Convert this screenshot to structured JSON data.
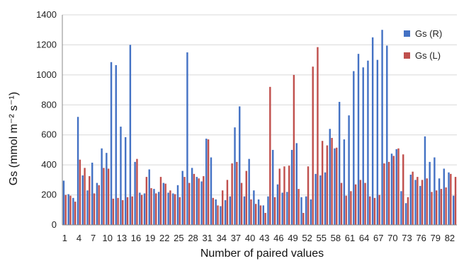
{
  "chart_data": {
    "type": "bar",
    "xlabel": "Number of paired values",
    "ylabel": "Gs (mmol m⁻² s⁻¹)",
    "ylim": [
      0,
      1400
    ],
    "yticks": [
      0,
      200,
      400,
      600,
      800,
      1000,
      1200,
      1400
    ],
    "xtick_labels": [
      "1",
      "4",
      "7",
      "10",
      "13",
      "16",
      "19",
      "22",
      "25",
      "28",
      "31",
      "34",
      "37",
      "40",
      "43",
      "46",
      "49",
      "52",
      "55",
      "58",
      "61",
      "64",
      "67",
      "70",
      "73",
      "76",
      "79",
      "82"
    ],
    "grid": true,
    "legend_position": "top-right",
    "x": [
      1,
      2,
      3,
      4,
      5,
      6,
      7,
      8,
      9,
      10,
      11,
      12,
      13,
      14,
      15,
      16,
      17,
      18,
      19,
      20,
      21,
      22,
      23,
      24,
      25,
      26,
      27,
      28,
      29,
      30,
      31,
      32,
      33,
      34,
      35,
      36,
      37,
      38,
      39,
      40,
      41,
      42,
      43,
      44,
      45,
      46,
      47,
      48,
      49,
      50,
      51,
      52,
      53,
      54,
      55,
      56,
      57,
      58,
      59,
      60,
      61,
      62,
      63,
      64,
      65,
      66,
      67,
      68,
      69,
      70,
      71,
      72,
      73,
      74,
      75,
      76,
      77,
      78,
      79,
      80,
      81,
      82,
      83
    ],
    "series": [
      {
        "name": "Gs (R)",
        "color": "#4472c4",
        "values": [
          295,
          205,
          180,
          720,
          330,
          230,
          415,
          280,
          510,
          480,
          1085,
          1065,
          655,
          585,
          1200,
          420,
          215,
          210,
          370,
          240,
          220,
          280,
          215,
          210,
          265,
          360,
          1150,
          380,
          320,
          290,
          575,
          450,
          170,
          125,
          165,
          190,
          650,
          790,
          190,
          440,
          230,
          170,
          130,
          190,
          500,
          270,
          215,
          220,
          500,
          545,
          185,
          190,
          170,
          340,
          330,
          350,
          640,
          510,
          820,
          570,
          730,
          1025,
          1140,
          1050,
          1095,
          1250,
          1100,
          1300,
          1195,
          475,
          505,
          225,
          145,
          335,
          300,
          260,
          590,
          420,
          450,
          310,
          375,
          350,
          195
        ]
      },
      {
        "name": "Gs (L)",
        "color": "#c0504d",
        "values": [
          200,
          195,
          155,
          435,
          380,
          325,
          210,
          265,
          380,
          375,
          175,
          180,
          165,
          185,
          190,
          440,
          200,
          320,
          245,
          210,
          320,
          275,
          230,
          205,
          185,
          320,
          280,
          340,
          310,
          325,
          570,
          180,
          130,
          230,
          300,
          410,
          420,
          280,
          360,
          170,
          140,
          130,
          80,
          920,
          185,
          375,
          390,
          395,
          1000,
          240,
          80,
          390,
          1055,
          1185,
          560,
          530,
          580,
          515,
          280,
          195,
          225,
          270,
          300,
          280,
          190,
          180,
          200,
          410,
          420,
          460,
          510,
          470,
          185,
          355,
          320,
          300,
          310,
          220,
          230,
          240,
          250,
          340,
          320
        ]
      }
    ]
  }
}
